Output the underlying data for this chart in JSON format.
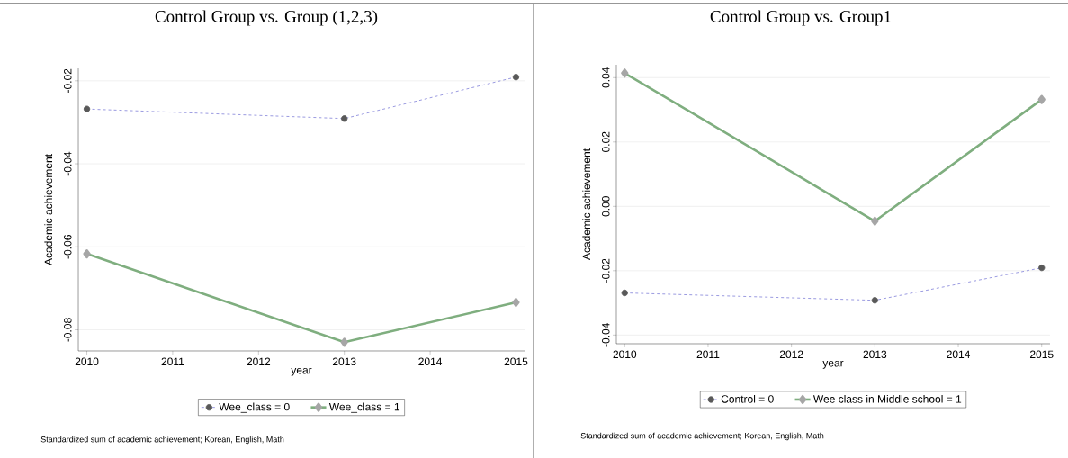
{
  "chart_data": [
    {
      "type": "line",
      "title": "Control Group vs. Group (1,2,3)",
      "xlabel": "year",
      "ylabel": "Academic achievement",
      "xlim": [
        2009.9,
        2015.1
      ],
      "ylim": [
        -0.0851,
        -0.017
      ],
      "xticks": [
        2010,
        2011,
        2012,
        2013,
        2014,
        2015
      ],
      "yticks": [
        -0.08,
        -0.06,
        -0.04,
        -0.02
      ],
      "grid": "y",
      "legend": "bottom",
      "series": [
        {
          "name": "Wee_class = 0",
          "color": "#8f8fdc",
          "marker": "circle",
          "line_style": "dashed",
          "x": [
            2010,
            2013,
            2015
          ],
          "values": [
            -0.0268,
            -0.0291,
            -0.0191
          ]
        },
        {
          "name": "Wee_class = 1",
          "color": "#7fae7f",
          "marker": "diamond",
          "line_style": "solid",
          "x": [
            2010,
            2013,
            2015
          ],
          "values": [
            -0.0617,
            -0.083,
            -0.0734
          ]
        }
      ],
      "annotations": [
        "Standardized sum of academic achievement; Korean, English, Math"
      ]
    },
    {
      "type": "line",
      "title": "Control Group vs. Group1",
      "xlabel": "year",
      "ylabel": "Academic achievement",
      "xlim": [
        2009.9,
        2015.1
      ],
      "ylim": [
        -0.0427,
        0.044
      ],
      "xticks": [
        2010,
        2011,
        2012,
        2013,
        2014,
        2015
      ],
      "yticks": [
        -0.04,
        -0.02,
        {
          "value": 0,
          "label": "0.00"
        },
        0.02,
        0.04
      ],
      "grid": "y",
      "legend": "bottom",
      "series": [
        {
          "name": "Control = 0",
          "color": "#8f8fdc",
          "marker": "circle",
          "line_style": "dashed",
          "x": [
            2010,
            2013,
            2015
          ],
          "values": [
            -0.0269,
            -0.0292,
            -0.0191
          ]
        },
        {
          "name": "Wee class in Middle school = 1",
          "color": "#7fae7f",
          "marker": "diamond",
          "line_style": "solid",
          "x": [
            2010,
            2013,
            2015
          ],
          "values": [
            0.0414,
            -0.0046,
            0.0332
          ]
        }
      ],
      "annotations": [
        "Standardized sum of academic achievement; Korean, English, Math"
      ]
    }
  ]
}
